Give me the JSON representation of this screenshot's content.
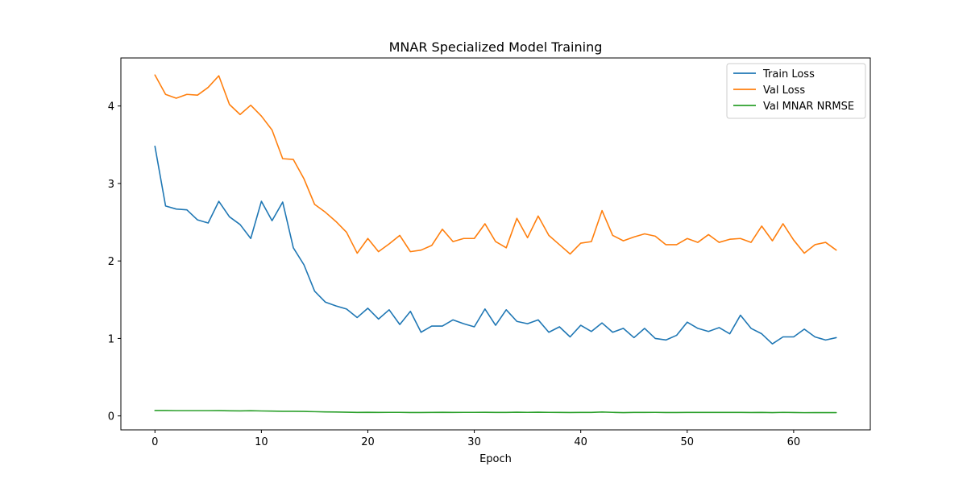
{
  "chart_data": {
    "type": "line",
    "title": "MNAR Specialized Model Training",
    "xlabel": "Epoch",
    "ylabel": "",
    "xlim": [
      -3.2,
      67.2
    ],
    "ylim": [
      -0.18,
      4.62
    ],
    "xticks": [
      0,
      10,
      20,
      30,
      40,
      50,
      60
    ],
    "yticks": [
      0,
      1,
      2,
      3,
      4
    ],
    "grid": false,
    "legend_position": "top-right",
    "x": [
      0,
      1,
      2,
      3,
      4,
      5,
      6,
      7,
      8,
      9,
      10,
      11,
      12,
      13,
      14,
      15,
      16,
      17,
      18,
      19,
      20,
      21,
      22,
      23,
      24,
      25,
      26,
      27,
      28,
      29,
      30,
      31,
      32,
      33,
      34,
      35,
      36,
      37,
      38,
      39,
      40,
      41,
      42,
      43,
      44,
      45,
      46,
      47,
      48,
      49,
      50,
      51,
      52,
      53,
      54,
      55,
      56,
      57,
      58,
      59,
      60,
      61,
      62,
      63,
      64
    ],
    "series": [
      {
        "name": "Train Loss",
        "color": "#1f77b4",
        "values": [
          3.48,
          2.71,
          2.67,
          2.66,
          2.53,
          2.49,
          2.77,
          2.57,
          2.47,
          2.29,
          2.77,
          2.52,
          2.76,
          2.17,
          1.95,
          1.61,
          1.47,
          1.42,
          1.38,
          1.27,
          1.39,
          1.25,
          1.37,
          1.18,
          1.35,
          1.08,
          1.16,
          1.16,
          1.24,
          1.19,
          1.15,
          1.38,
          1.17,
          1.37,
          1.22,
          1.19,
          1.24,
          1.08,
          1.15,
          1.02,
          1.17,
          1.09,
          1.2,
          1.08,
          1.13,
          1.01,
          1.13,
          1.0,
          0.98,
          1.04,
          1.21,
          1.13,
          1.09,
          1.14,
          1.06,
          1.3,
          1.13,
          1.06,
          0.93,
          1.02,
          1.02,
          1.12,
          1.02,
          0.98,
          1.01
        ]
      },
      {
        "name": "Val Loss",
        "color": "#ff7f0e",
        "values": [
          4.4,
          4.15,
          4.1,
          4.15,
          4.14,
          4.24,
          4.39,
          4.02,
          3.89,
          4.01,
          3.87,
          3.69,
          3.32,
          3.31,
          3.06,
          2.73,
          2.63,
          2.51,
          2.37,
          2.1,
          2.29,
          2.12,
          2.22,
          2.33,
          2.12,
          2.14,
          2.2,
          2.41,
          2.25,
          2.29,
          2.29,
          2.48,
          2.25,
          2.17,
          2.55,
          2.3,
          2.58,
          2.33,
          2.21,
          2.09,
          2.23,
          2.25,
          2.65,
          2.33,
          2.26,
          2.31,
          2.35,
          2.32,
          2.21,
          2.21,
          2.29,
          2.24,
          2.34,
          2.24,
          2.28,
          2.29,
          2.24,
          2.45,
          2.26,
          2.48,
          2.27,
          2.1,
          2.21,
          2.24,
          2.14
        ]
      },
      {
        "name": "Val MNAR NRMSE",
        "color": "#2ca02c",
        "values": [
          0.07,
          0.07,
          0.068,
          0.068,
          0.068,
          0.068,
          0.069,
          0.066,
          0.065,
          0.067,
          0.064,
          0.062,
          0.06,
          0.06,
          0.058,
          0.055,
          0.052,
          0.05,
          0.048,
          0.045,
          0.047,
          0.045,
          0.046,
          0.046,
          0.044,
          0.044,
          0.045,
          0.047,
          0.045,
          0.046,
          0.046,
          0.047,
          0.045,
          0.045,
          0.048,
          0.046,
          0.048,
          0.046,
          0.045,
          0.044,
          0.045,
          0.045,
          0.05,
          0.046,
          0.043,
          0.045,
          0.045,
          0.046,
          0.044,
          0.044,
          0.045,
          0.045,
          0.045,
          0.045,
          0.045,
          0.045,
          0.044,
          0.045,
          0.043,
          0.046,
          0.044,
          0.042,
          0.043,
          0.043,
          0.043
        ]
      }
    ]
  }
}
